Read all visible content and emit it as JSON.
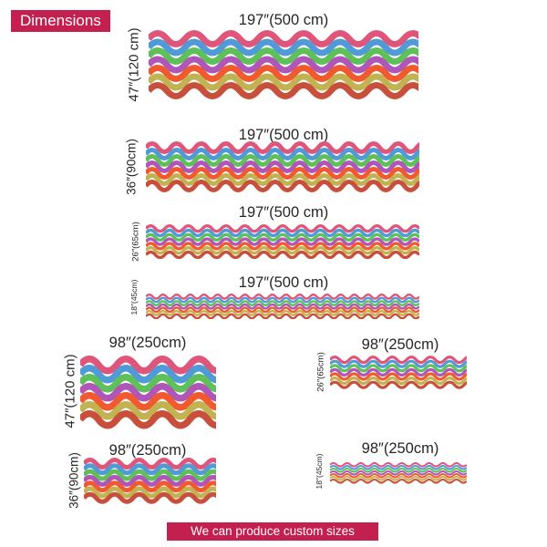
{
  "header": {
    "label": "Dimensions"
  },
  "footer": {
    "label": "We can produce custom sizes"
  },
  "colors": {
    "accent": "#c32050",
    "text": "#262626",
    "wave_palette": [
      "#e0557a",
      "#4f9ad7",
      "#5fc05a",
      "#af56b8",
      "#f05a2e",
      "#c1b351",
      "#c94f3d"
    ]
  },
  "patterns": [
    {
      "width_label": "197″(500 cm)",
      "height_label": "47″(120 cm)"
    },
    {
      "width_label": "197″(500 cm)",
      "height_label": "36″(90cm)"
    },
    {
      "width_label": "197″(500 cm)",
      "height_label": "26″(65cm)"
    },
    {
      "width_label": "197″(500 cm)",
      "height_label": "18″(45cm)"
    },
    {
      "width_label": "98″(250cm)",
      "height_label": "47″(120 cm)"
    },
    {
      "width_label": "98″(250cm)",
      "height_label": "36″(90cm)"
    },
    {
      "width_label": "98″(250cm)",
      "height_label": "26″(65cm)"
    },
    {
      "width_label": "98″(250cm)",
      "height_label": "18″(45cm)"
    }
  ]
}
